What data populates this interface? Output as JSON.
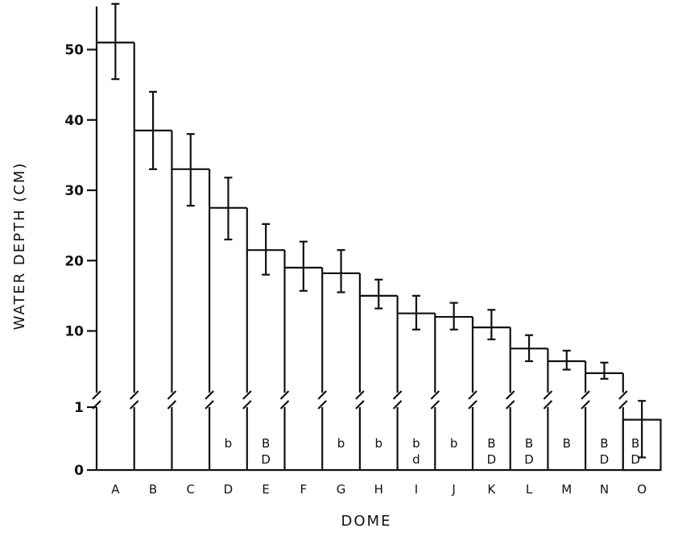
{
  "chart_data": {
    "type": "bar",
    "xlabel": "DOME",
    "ylabel": "WATER DEPTH (CM)",
    "y_axis_break": true,
    "y_ticks_lower": [
      0,
      1
    ],
    "y_ticks_upper": [
      10,
      20,
      30,
      40,
      50
    ],
    "ylim_upper": [
      2.5,
      52
    ],
    "ylim_lower": [
      0,
      1.4
    ],
    "categories": [
      "A",
      "B",
      "C",
      "D",
      "E",
      "F",
      "G",
      "H",
      "I",
      "J",
      "K",
      "L",
      "M",
      "N",
      "O"
    ],
    "values": [
      51,
      38.5,
      33,
      27.5,
      21.5,
      19,
      18.2,
      15,
      12.5,
      12,
      10.5,
      7.5,
      5.7,
      4,
      0.8
    ],
    "error_low": [
      45.8,
      33,
      27.8,
      23,
      18,
      15.7,
      15.5,
      13.2,
      10.2,
      10.2,
      8.8,
      5.7,
      4.5,
      3.2,
      0.2
    ],
    "error_high": [
      56.5,
      44,
      38,
      31.8,
      25.2,
      22.7,
      21.5,
      17.3,
      15,
      14,
      13,
      9.4,
      7.2,
      5.5,
      1.1
    ],
    "annotations": [
      {
        "category": "D",
        "lines": [
          "b"
        ]
      },
      {
        "category": "E",
        "lines": [
          "B",
          "D"
        ]
      },
      {
        "category": "G",
        "lines": [
          "b"
        ]
      },
      {
        "category": "H",
        "lines": [
          "b"
        ]
      },
      {
        "category": "I",
        "lines": [
          "b",
          "d"
        ]
      },
      {
        "category": "J",
        "lines": [
          "b"
        ]
      },
      {
        "category": "K",
        "lines": [
          "B",
          "D"
        ]
      },
      {
        "category": "L",
        "lines": [
          "B",
          "D"
        ]
      },
      {
        "category": "M",
        "lines": [
          "B"
        ]
      },
      {
        "category": "N",
        "lines": [
          "B",
          "D"
        ]
      },
      {
        "category": "O",
        "lines": [
          "B",
          "D"
        ]
      }
    ],
    "legend": "none",
    "grid": false
  }
}
